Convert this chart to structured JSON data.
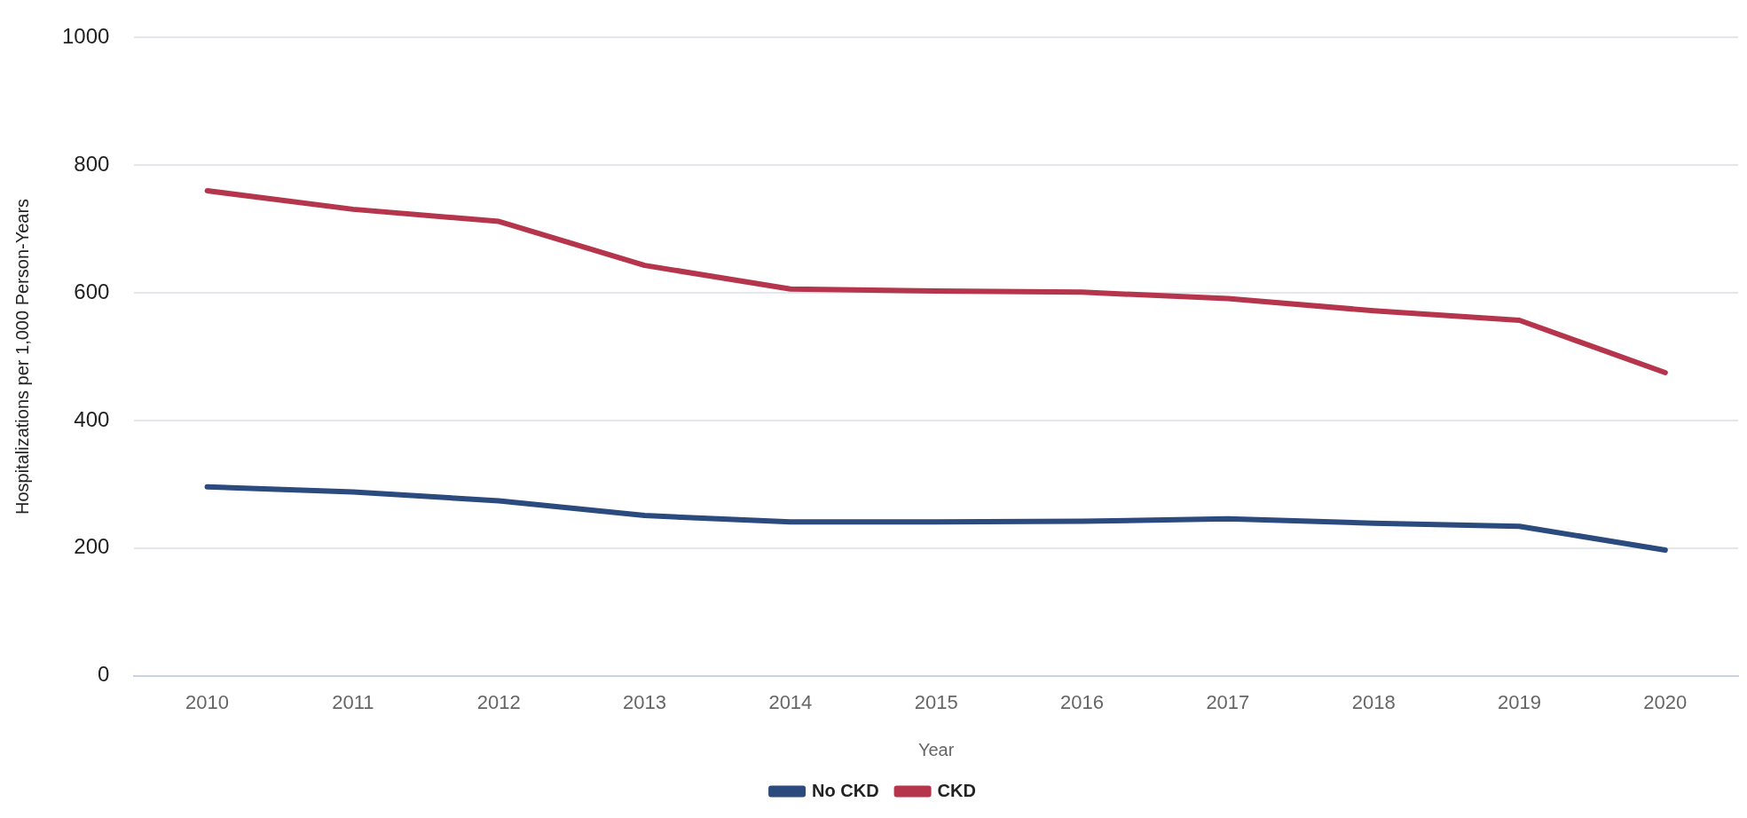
{
  "chart_data": {
    "type": "line",
    "xlabel": "Year",
    "ylabel": "Hospitalizations per 1,000 Person-Years",
    "categories": [
      "2010",
      "2011",
      "2012",
      "2013",
      "2014",
      "2015",
      "2016",
      "2017",
      "2018",
      "2019",
      "2020"
    ],
    "series": [
      {
        "name": "No CKD",
        "color": "#2b4a7e",
        "values": [
          296,
          288,
          274,
          251,
          241,
          241,
          242,
          246,
          239,
          234,
          197
        ]
      },
      {
        "name": "CKD",
        "color": "#b5364c",
        "values": [
          760,
          731,
          712,
          643,
          606,
          603,
          601,
          591,
          572,
          557,
          475
        ]
      }
    ],
    "ylim": [
      0,
      1000
    ],
    "yticks": [
      0,
      200,
      400,
      600,
      800,
      1000
    ],
    "grid": "y",
    "legend": "bottom",
    "marker": "none",
    "line_style": "solid"
  }
}
